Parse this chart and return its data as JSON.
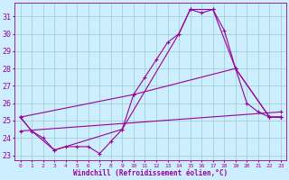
{
  "bg_color": "#cceeff",
  "line_color": "#990099",
  "grid_color": "#99cccc",
  "xlabel": "Windchill (Refroidissement éolien,°C)",
  "xlim": [
    -0.5,
    23.5
  ],
  "ylim": [
    22.7,
    31.8
  ],
  "yticks": [
    23,
    24,
    25,
    26,
    27,
    28,
    29,
    30,
    31
  ],
  "xticks": [
    0,
    1,
    2,
    3,
    4,
    5,
    6,
    7,
    8,
    9,
    10,
    11,
    12,
    13,
    14,
    15,
    16,
    17,
    18,
    19,
    20,
    21,
    22,
    23
  ],
  "line1_x": [
    0,
    1,
    2,
    3,
    4,
    5,
    6,
    7,
    8,
    9,
    10,
    11,
    12,
    13,
    14,
    15,
    16,
    17,
    18,
    19,
    20,
    21,
    22,
    23
  ],
  "line1_y": [
    25.2,
    24.4,
    24.0,
    23.3,
    23.5,
    23.5,
    23.5,
    23.1,
    23.8,
    24.5,
    26.5,
    27.5,
    28.5,
    29.5,
    30.0,
    31.4,
    31.2,
    31.4,
    30.2,
    28.0,
    26.0,
    25.5,
    25.2,
    25.2
  ],
  "line2_x": [
    0,
    1,
    3,
    9,
    14,
    15,
    17,
    19,
    22,
    23
  ],
  "line2_y": [
    25.2,
    24.4,
    23.3,
    24.5,
    30.0,
    31.4,
    31.4,
    28.0,
    25.2,
    25.2
  ],
  "line3_x": [
    0,
    10,
    19,
    22,
    23
  ],
  "line3_y": [
    25.2,
    26.5,
    28.0,
    25.2,
    25.2
  ],
  "line4_x": [
    0,
    23
  ],
  "line4_y": [
    24.4,
    25.5
  ]
}
